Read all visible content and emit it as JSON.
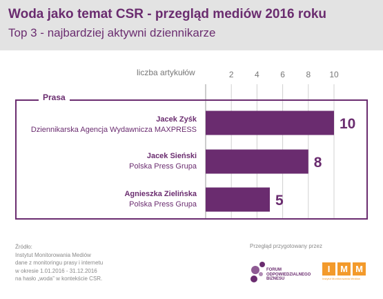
{
  "header": {
    "title": "Woda jako temat CSR - przegląd mediów 2016 roku",
    "subtitle": "Top 3 - najbardziej aktywni dziennikarze"
  },
  "section_label": "Prasa",
  "chart_data": {
    "type": "bar",
    "orientation": "horizontal",
    "xlabel": "liczba artykułów",
    "xticks": [
      "2",
      "4",
      "6",
      "8",
      "10"
    ],
    "xlim": [
      0,
      10
    ],
    "categories": [
      {
        "name": "Jacek Zyśk",
        "org": "Dziennikarska Agencja Wydawnicza MAXPRESS"
      },
      {
        "name": "Jacek Sieński",
        "org": "Polska Press Grupa"
      },
      {
        "name": "Agnieszka Zielińska",
        "org": "Polska Press Grupa"
      }
    ],
    "values": [
      10,
      8,
      5
    ],
    "data_labels": [
      "10",
      "8",
      "5"
    ],
    "bar_color": "#6a2c6f",
    "grid": true
  },
  "source": {
    "lines": [
      "Źródło:",
      "Instytut Monitorowania Mediów",
      "dane z monitoringu prasy i internetu",
      "w okresie 1.01.2016 - 31.12.2016",
      "na hasło „woda” w kontekście CSR."
    ]
  },
  "prepared_by": "Przegląd przygotowany przez",
  "logos": {
    "forum_lines": [
      "FORUM",
      "ODPOWIEDZIALNEGO",
      "BIZNESU"
    ],
    "imm_letters": [
      "I",
      "M",
      "M"
    ],
    "imm_caption": "Instytut Monitorowania Mediów"
  },
  "colors": {
    "accent": "#6a2c6f",
    "header_bg": "#e3e3e3",
    "grid": "#d0d0d0",
    "imm_orange": "#f39a2b"
  }
}
